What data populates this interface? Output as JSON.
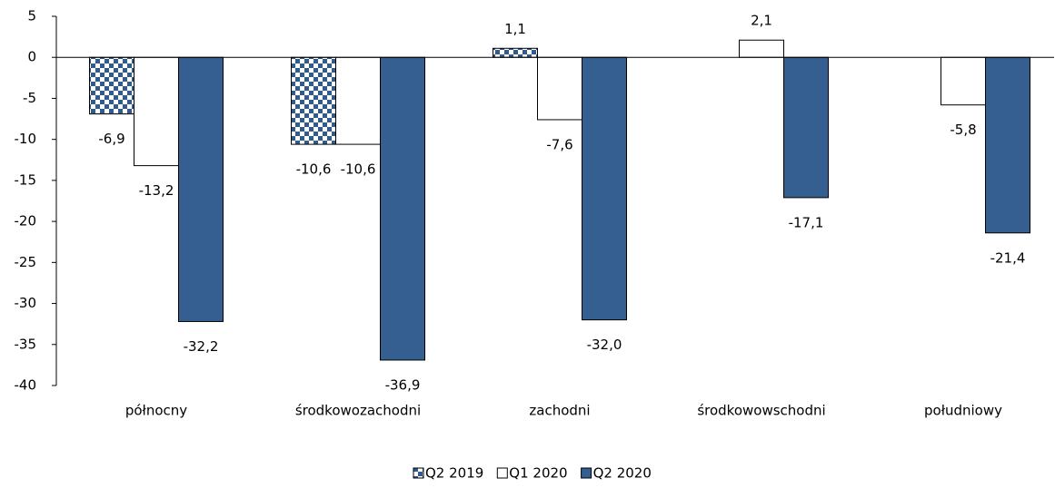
{
  "chart_data": {
    "type": "bar",
    "categories": [
      "północny",
      "środkowozachodni",
      "zachodni",
      "środkowowschodni",
      "południowy"
    ],
    "series": [
      {
        "name": "Q2 2019",
        "color": "#2f5b8f",
        "pattern": "checker",
        "values": [
          -6.9,
          -10.6,
          1.1,
          null,
          null
        ],
        "value_labels": [
          "-6,9",
          "-10,6",
          "1,1",
          null,
          null
        ]
      },
      {
        "name": "Q1 2020",
        "color": "#ffffff",
        "values": [
          -13.2,
          -10.6,
          -7.6,
          2.1,
          -5.8
        ],
        "value_labels": [
          "-13,2",
          "-10,6",
          "-7,6",
          "2,1",
          "-5,8"
        ]
      },
      {
        "name": "Q2 2020",
        "color": "#355f91",
        "values": [
          -32.2,
          -36.9,
          -32.0,
          -17.1,
          -21.4
        ],
        "value_labels": [
          "-32,2",
          "-36,9",
          "-32,0",
          "-17,1",
          "-21,4"
        ]
      }
    ],
    "ylim": [
      -40,
      5
    ],
    "yticks": [
      5,
      0,
      -5,
      -10,
      -15,
      -20,
      -25,
      -30,
      -35,
      -40
    ],
    "grid": false,
    "legend": "bottom"
  }
}
